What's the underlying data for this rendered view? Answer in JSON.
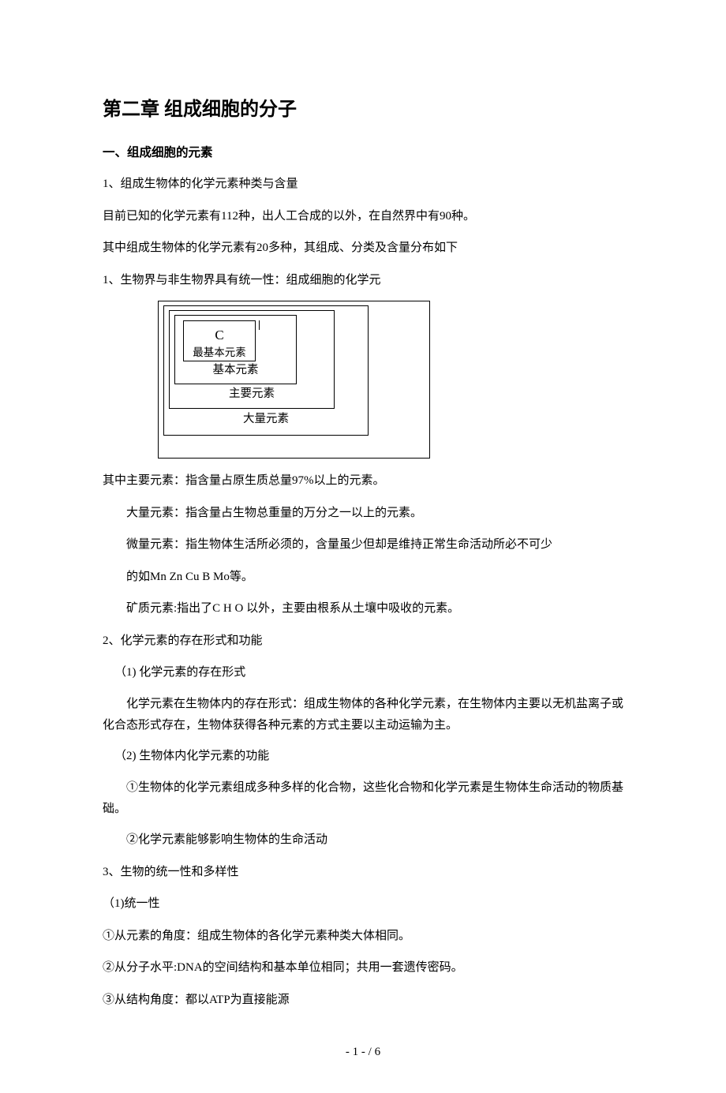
{
  "chapter_title": "第二章  组成细胞的分子",
  "section1": {
    "title": "一、组成细胞的元素",
    "p1": "1、组成生物体的化学元素种类与含量",
    "p2": "目前已知的化学元素有112种，出人工合成的以外，在自然界中有90种。",
    "p3": "其中组成生物体的化学元素有20多种，其组成、分类及含量分布如下",
    "p4": "1、生物界与非生物界具有统一性：组成细胞的化学元"
  },
  "diagram": {
    "c": "C",
    "most_basic": "最基本元素",
    "basic": "基本元素",
    "main": "主要元素",
    "large": "大量元素",
    "border_color": "#000000",
    "bg_color": "#ffffff"
  },
  "defs": {
    "main_elem": "其中主要元素：指含量占原生质总量97%以上的元素。",
    "large_elem": "大量元素：指含量占生物总重量的万分之一以上的元素。",
    "trace_elem": "微量元素：指生物体生活所必须的，含量虽少但却是维持正常生命活动所必不可少",
    "trace_elem2": "的如Mn Zn Cu B Mo等。",
    "mineral_elem": "矿质元素:指出了C H O 以外，主要由根系从土壤中吸收的元素。"
  },
  "section2": {
    "title": "2、化学元素的存在形式和功能",
    "sub1_title": "（1) 化学元素的存在形式",
    "sub1_text": "化学元素在生物体内的存在形式：组成生物体的各种化学元素，在生物体内主要以无机盐离子或化合态形式存在，生物体获得各种元素的方式主要以主动运输为主。",
    "sub2_title": "（2) 生物体内化学元素的功能",
    "sub2_text1": "①生物体的化学元素组成多种多样的化合物，这些化合物和化学元素是生物体生命活动的物质基础。",
    "sub2_text2": "②化学元素能够影响生物体的生命活动"
  },
  "section3": {
    "title": "3、生物的统一性和多样性",
    "sub1": "（1)统一性",
    "p1": "①从元素的角度：组成生物体的各化学元素种类大体相同。",
    "p2": "②从分子水平:DNA的空间结构和基本单位相同；共用一套遗传密码。",
    "p3": "③从结构角度：都以ATP为直接能源"
  },
  "footer": "- 1 - / 6"
}
